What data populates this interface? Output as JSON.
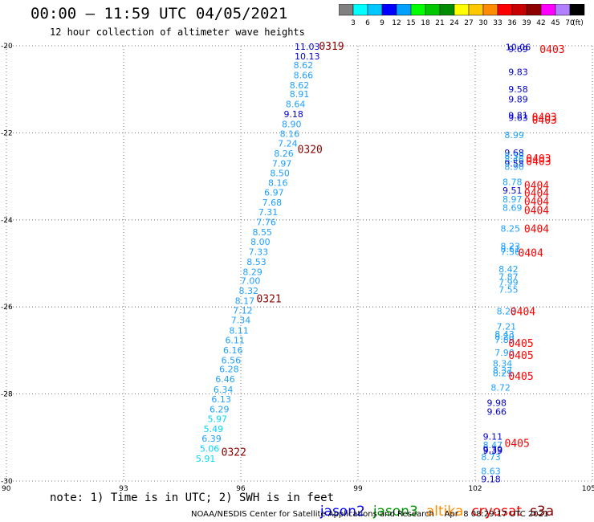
{
  "header": {
    "title": "00:00 – 11:59 UTC 04/05/2021",
    "subtitle": "12 hour collection of altimeter wave heights"
  },
  "colorbar": {
    "labels": [
      "3",
      "6",
      "9",
      "12",
      "15",
      "18",
      "21",
      "24",
      "27",
      "30",
      "33",
      "36",
      "39",
      "42",
      "45",
      "70"
    ],
    "unit": "(ft)",
    "colors": [
      "#808080",
      "#00ffff",
      "#00c8ff",
      "#0000ff",
      "#00a0ff",
      "#00ff00",
      "#00c800",
      "#008c00",
      "#ffff00",
      "#ffc800",
      "#ff8c00",
      "#ff0000",
      "#c80000",
      "#8c0000",
      "#ff00ff",
      "#b080ff",
      "#000000"
    ]
  },
  "footer": {
    "note": "note: 1) Time is in UTC; 2) SWH is in feet",
    "sources": [
      {
        "name": "jason2",
        "color": "#0000ff"
      },
      {
        "name": "jason3",
        "color": "#009600"
      },
      {
        "name": "altika",
        "color": "#ff8c00"
      },
      {
        "name": "cryosat",
        "color": "#ff0000"
      },
      {
        "name": "s3a",
        "color": "#8b0000"
      }
    ],
    "credit": "NOAA/NESDIS Center for Satellite Applications and Research    Apr  8 08:29:17 UTC 2021"
  },
  "chart_data": {
    "type": "scatter",
    "title": "00:00 – 11:59 UTC 04/05/2021",
    "xlim": [
      90,
      105
    ],
    "ylim": [
      -30,
      -20
    ],
    "x_ticks": [
      "90",
      "93",
      "96",
      "99",
      "102",
      "105"
    ],
    "x_tick_values": [
      90,
      93,
      96,
      99,
      102,
      105
    ],
    "y_ticks": [
      "-20",
      "-22",
      "-24",
      "-26",
      "-28",
      "-30"
    ],
    "y_tick_values": [
      -20,
      -22,
      -24,
      -26,
      -28,
      -30
    ],
    "grid": true,
    "series": [
      {
        "name": "s3a",
        "points": [
          {
            "x": 97.7,
            "y": -20.02,
            "v": "11.03",
            "c": "#0000cc"
          },
          {
            "x": 97.7,
            "y": -20.24,
            "v": "10.13",
            "c": "#0000cc"
          },
          {
            "x": 97.6,
            "y": -20.44,
            "v": "8.62",
            "c": "#1ea0ff"
          },
          {
            "x": 97.6,
            "y": -20.67,
            "v": "8.66",
            "c": "#1ea0ff"
          },
          {
            "x": 97.5,
            "y": -20.9,
            "v": "8.62",
            "c": "#1ea0ff"
          },
          {
            "x": 97.5,
            "y": -21.11,
            "v": "8.91",
            "c": "#1ea0ff"
          },
          {
            "x": 97.4,
            "y": -21.34,
            "v": "8.64",
            "c": "#1ea0ff"
          },
          {
            "x": 97.35,
            "y": -21.57,
            "v": "9.18",
            "c": "#0000cc"
          },
          {
            "x": 97.3,
            "y": -21.8,
            "v": "8.90",
            "c": "#1ea0ff"
          },
          {
            "x": 97.25,
            "y": -22.02,
            "v": "8.16",
            "c": "#1ea0ff"
          },
          {
            "x": 97.2,
            "y": -22.24,
            "v": "7.24",
            "c": "#1ea0ff"
          },
          {
            "x": 97.1,
            "y": -22.47,
            "v": "8.26",
            "c": "#1ea0ff"
          },
          {
            "x": 97.05,
            "y": -22.7,
            "v": "7.97",
            "c": "#1ea0ff"
          },
          {
            "x": 97.0,
            "y": -22.92,
            "v": "8.50",
            "c": "#1ea0ff"
          },
          {
            "x": 96.95,
            "y": -23.15,
            "v": "8.16",
            "c": "#1ea0ff"
          },
          {
            "x": 96.85,
            "y": -23.37,
            "v": "6.97",
            "c": "#1ea0ff"
          },
          {
            "x": 96.8,
            "y": -23.6,
            "v": "7.68",
            "c": "#1ea0ff"
          },
          {
            "x": 96.7,
            "y": -23.82,
            "v": "7.31",
            "c": "#1ea0ff"
          },
          {
            "x": 96.65,
            "y": -24.05,
            "v": "7.76",
            "c": "#1ea0ff"
          },
          {
            "x": 96.55,
            "y": -24.28,
            "v": "8.55",
            "c": "#1ea0ff"
          },
          {
            "x": 96.5,
            "y": -24.5,
            "v": "8.00",
            "c": "#1ea0ff"
          },
          {
            "x": 96.45,
            "y": -24.73,
            "v": "7.33",
            "c": "#1ea0ff"
          },
          {
            "x": 96.4,
            "y": -24.96,
            "v": "8.53",
            "c": "#1ea0ff"
          },
          {
            "x": 96.3,
            "y": -25.19,
            "v": "8.29",
            "c": "#1ea0ff"
          },
          {
            "x": 96.25,
            "y": -25.4,
            "v": "7.00",
            "c": "#1ea0ff"
          },
          {
            "x": 96.2,
            "y": -25.63,
            "v": "8.32",
            "c": "#1ea0ff"
          },
          {
            "x": 96.1,
            "y": -25.86,
            "v": "8.17",
            "c": "#1ea0ff"
          },
          {
            "x": 96.05,
            "y": -26.08,
            "v": "7.12",
            "c": "#1ea0ff"
          },
          {
            "x": 96.0,
            "y": -26.3,
            "v": "7.34",
            "c": "#1ea0ff"
          },
          {
            "x": 95.95,
            "y": -26.54,
            "v": "8.11",
            "c": "#1ea0ff"
          },
          {
            "x": 95.85,
            "y": -26.76,
            "v": "6.11",
            "c": "#1ea0ff"
          },
          {
            "x": 95.8,
            "y": -26.99,
            "v": "6.16",
            "c": "#1ea0ff"
          },
          {
            "x": 95.75,
            "y": -27.22,
            "v": "6.56",
            "c": "#1ea0ff"
          },
          {
            "x": 95.7,
            "y": -27.43,
            "v": "6.28",
            "c": "#1ea0ff"
          },
          {
            "x": 95.6,
            "y": -27.66,
            "v": "6.46",
            "c": "#1ea0ff"
          },
          {
            "x": 95.55,
            "y": -27.9,
            "v": "6.34",
            "c": "#1ea0ff"
          },
          {
            "x": 95.5,
            "y": -28.12,
            "v": "6.13",
            "c": "#1ea0ff"
          },
          {
            "x": 95.45,
            "y": -28.35,
            "v": "6.29",
            "c": "#1ea0ff"
          },
          {
            "x": 95.4,
            "y": -28.57,
            "v": "5.97",
            "c": "#00d8ff"
          },
          {
            "x": 95.3,
            "y": -28.8,
            "v": "5.49",
            "c": "#00d8ff"
          },
          {
            "x": 95.25,
            "y": -29.02,
            "v": "6.39",
            "c": "#1ea0ff"
          },
          {
            "x": 95.2,
            "y": -29.25,
            "v": "5.06",
            "c": "#00d8ff"
          },
          {
            "x": 95.1,
            "y": -29.48,
            "v": "5.91",
            "c": "#00d8ff"
          }
        ]
      },
      {
        "name": "cryosat",
        "points": [
          {
            "x": 103.1,
            "y": -20.03,
            "v": "10.06",
            "c": "#0000cc"
          },
          {
            "x": 103.1,
            "y": -20.07,
            "v": "9.69",
            "c": "#0000cc"
          },
          {
            "x": 103.1,
            "y": -20.6,
            "v": "9.83",
            "c": "#0000cc"
          },
          {
            "x": 103.1,
            "y": -21.0,
            "v": "9.58",
            "c": "#0000cc"
          },
          {
            "x": 103.1,
            "y": -21.23,
            "v": "9.89",
            "c": "#0000cc"
          },
          {
            "x": 103.1,
            "y": -21.6,
            "v": "9.81",
            "c": "#0000cc"
          },
          {
            "x": 103.1,
            "y": -21.65,
            "v": "9.63",
            "c": "#0000cc"
          },
          {
            "x": 103.0,
            "y": -22.05,
            "v": "8.99",
            "c": "#1ea0ff"
          },
          {
            "x": 103.0,
            "y": -22.45,
            "v": "9.68",
            "c": "#0000cc"
          },
          {
            "x": 103.0,
            "y": -22.53,
            "v": "8.59",
            "c": "#1ea0ff"
          },
          {
            "x": 103.0,
            "y": -22.6,
            "v": "8.46",
            "c": "#1ea0ff"
          },
          {
            "x": 103.0,
            "y": -22.7,
            "v": "9.58",
            "c": "#0000cc"
          },
          {
            "x": 103.0,
            "y": -22.78,
            "v": "8.90",
            "c": "#1ea0ff"
          },
          {
            "x": 102.95,
            "y": -23.13,
            "v": "8.78",
            "c": "#1ea0ff"
          },
          {
            "x": 102.95,
            "y": -23.32,
            "v": "9.51",
            "c": "#0000cc"
          },
          {
            "x": 102.95,
            "y": -23.52,
            "v": "8.97",
            "c": "#1ea0ff"
          },
          {
            "x": 102.95,
            "y": -23.72,
            "v": "8.69",
            "c": "#1ea0ff"
          },
          {
            "x": 102.9,
            "y": -24.2,
            "v": "8.25",
            "c": "#1ea0ff"
          },
          {
            "x": 102.9,
            "y": -24.6,
            "v": "8.23",
            "c": "#1ea0ff"
          },
          {
            "x": 102.9,
            "y": -24.67,
            "v": "8.61",
            "c": "#1ea0ff"
          },
          {
            "x": 102.9,
            "y": -24.73,
            "v": "7.56",
            "c": "#1ea0ff"
          },
          {
            "x": 102.85,
            "y": -25.13,
            "v": "8.42",
            "c": "#1ea0ff"
          },
          {
            "x": 102.85,
            "y": -25.3,
            "v": "7.87",
            "c": "#1ea0ff"
          },
          {
            "x": 102.85,
            "y": -25.43,
            "v": "7.99",
            "c": "#1ea0ff"
          },
          {
            "x": 102.85,
            "y": -25.6,
            "v": "7.55",
            "c": "#1ea0ff"
          },
          {
            "x": 102.8,
            "y": -26.1,
            "v": "8.28",
            "c": "#1ea0ff"
          },
          {
            "x": 102.8,
            "y": -26.45,
            "v": "7.21",
            "c": "#1ea0ff"
          },
          {
            "x": 102.75,
            "y": -26.62,
            "v": "8.43",
            "c": "#1ea0ff"
          },
          {
            "x": 102.75,
            "y": -26.68,
            "v": "8.20",
            "c": "#1ea0ff"
          },
          {
            "x": 102.75,
            "y": -26.75,
            "v": "7.89",
            "c": "#1ea0ff"
          },
          {
            "x": 102.75,
            "y": -27.05,
            "v": "7.90",
            "c": "#1ea0ff"
          },
          {
            "x": 102.7,
            "y": -27.3,
            "v": "8.34",
            "c": "#1ea0ff"
          },
          {
            "x": 102.7,
            "y": -27.45,
            "v": "8.37",
            "c": "#1ea0ff"
          },
          {
            "x": 102.7,
            "y": -27.52,
            "v": "8.29",
            "c": "#1ea0ff"
          },
          {
            "x": 102.65,
            "y": -27.85,
            "v": "8.72",
            "c": "#1ea0ff"
          },
          {
            "x": 102.55,
            "y": -28.2,
            "v": "9.98",
            "c": "#0000cc"
          },
          {
            "x": 102.55,
            "y": -28.4,
            "v": "9.66",
            "c": "#0000cc"
          },
          {
            "x": 102.45,
            "y": -28.98,
            "v": "9.11",
            "c": "#0000cc"
          },
          {
            "x": 102.45,
            "y": -29.17,
            "v": "8.47",
            "c": "#1ea0ff"
          },
          {
            "x": 102.45,
            "y": -29.27,
            "v": "9.39",
            "c": "#0000cc"
          },
          {
            "x": 102.45,
            "y": -29.3,
            "v": "9.39",
            "c": "#0000cc"
          },
          {
            "x": 102.4,
            "y": -29.45,
            "v": "8.73",
            "c": "#1ea0ff"
          },
          {
            "x": 102.4,
            "y": -29.77,
            "v": "8.63",
            "c": "#1ea0ff"
          },
          {
            "x": 102.4,
            "y": -29.95,
            "v": "9.18",
            "c": "#0000cc"
          }
        ]
      }
    ],
    "annotations": [
      {
        "text": "0319",
        "x": 98.0,
        "y": -20.0,
        "c": "#8b0000"
      },
      {
        "text": "0320",
        "x": 97.45,
        "y": -22.37,
        "c": "#8b0000"
      },
      {
        "text": "0321",
        "x": 96.4,
        "y": -25.8,
        "c": "#8b0000"
      },
      {
        "text": "0322",
        "x": 95.5,
        "y": -29.33,
        "c": "#8b0000"
      },
      {
        "text": "0403",
        "x": 103.65,
        "y": -20.07,
        "c": "#ff0000"
      },
      {
        "text": "0403",
        "x": 103.45,
        "y": -21.63,
        "c": "#ff0000"
      },
      {
        "text": "0403",
        "x": 103.45,
        "y": -21.7,
        "c": "#ff0000"
      },
      {
        "text": "0403",
        "x": 103.3,
        "y": -22.58,
        "c": "#ff0000"
      },
      {
        "text": "0403",
        "x": 103.3,
        "y": -22.65,
        "c": "#ff0000"
      },
      {
        "text": "0404",
        "x": 103.25,
        "y": -23.2,
        "c": "#ff0000"
      },
      {
        "text": "0404",
        "x": 103.25,
        "y": -23.38,
        "c": "#ff0000"
      },
      {
        "text": "0404",
        "x": 103.25,
        "y": -23.57,
        "c": "#ff0000"
      },
      {
        "text": "0404",
        "x": 103.25,
        "y": -23.77,
        "c": "#ff0000"
      },
      {
        "text": "0404",
        "x": 103.25,
        "y": -24.2,
        "c": "#ff0000"
      },
      {
        "text": "0404",
        "x": 103.1,
        "y": -24.75,
        "c": "#ff0000"
      },
      {
        "text": "0404",
        "x": 102.9,
        "y": -26.1,
        "c": "#ff0000"
      },
      {
        "text": "0405",
        "x": 102.85,
        "y": -26.83,
        "c": "#ff0000"
      },
      {
        "text": "0405",
        "x": 102.85,
        "y": -27.1,
        "c": "#ff0000"
      },
      {
        "text": "0405",
        "x": 102.85,
        "y": -27.58,
        "c": "#ff0000"
      },
      {
        "text": "0405",
        "x": 102.75,
        "y": -29.12,
        "c": "#ff0000"
      }
    ]
  }
}
